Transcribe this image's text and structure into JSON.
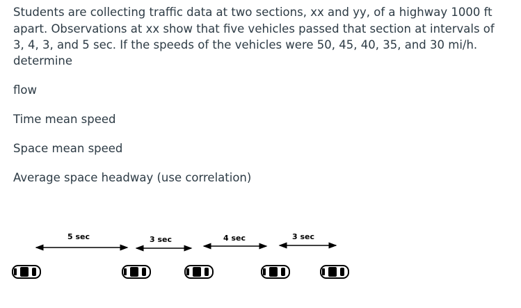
{
  "problem": {
    "lines": [
      "Students are collecting traffic data at two sections, xx and yy, of a highway 1000 ft",
      "apart. Observations at xx show that five vehicles passed that section at intervals of",
      "3, 4, 3, and 5 sec. If the speeds of the vehicles were 50, 45, 40, 35, and 30 mi/h.",
      "determine"
    ]
  },
  "items": [
    "flow",
    "Time mean speed",
    "Space mean speed",
    "Average space headway (use correlation)"
  ],
  "diagram": {
    "intervals": [
      "5 sec",
      "3 sec",
      "4 sec",
      "3 sec"
    ]
  }
}
